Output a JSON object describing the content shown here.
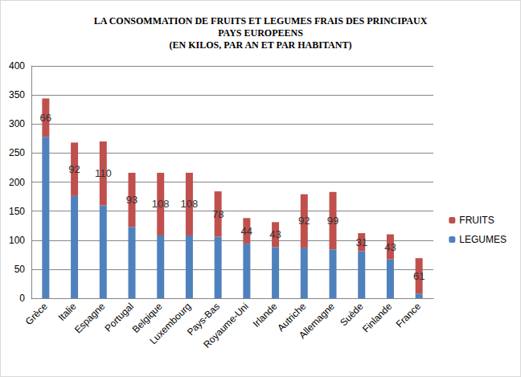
{
  "chart_data": {
    "type": "bar",
    "title": "LA CONSOMMATION DE FRUITS ET LEGUMES FRAIS DES PRINCIPAUX\nPAYS EUROPEENS\n(EN KILOS, PAR AN ET PAR HABITANT)",
    "categories": [
      "Grèce",
      "Italie",
      "Espagne",
      "Portugal",
      "Belgique",
      "Luxembourg",
      "Pays-Bas",
      "Royaume-Uni",
      "Irlande",
      "Autriche",
      "Allemagne",
      "Suède",
      "Finlande",
      "France"
    ],
    "series": [
      {
        "name": "LEGUMES",
        "color": "#4f81bd",
        "values": [
          278,
          176,
          160,
          123,
          108,
          108,
          106,
          94,
          88,
          87,
          84,
          81,
          67,
          8
        ]
      },
      {
        "name": "FRUITS",
        "color": "#c0504d",
        "data_labels": true,
        "values": [
          66,
          92,
          110,
          93,
          108,
          108,
          78,
          44,
          43,
          92,
          99,
          31,
          43,
          61
        ]
      }
    ],
    "stacked": true,
    "ylim": [
      0,
      400
    ],
    "yticks": [
      0,
      50,
      100,
      150,
      200,
      250,
      300,
      350,
      400
    ],
    "grid": true,
    "legend": "right"
  }
}
